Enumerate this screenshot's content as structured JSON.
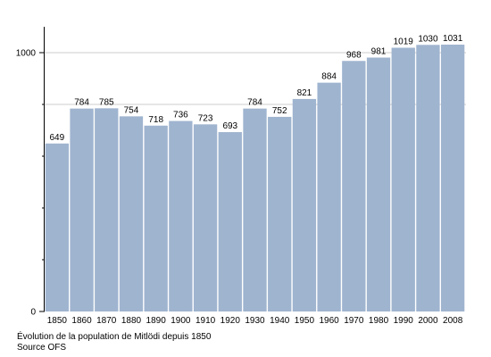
{
  "chart_data": {
    "type": "bar",
    "categories": [
      "1850",
      "1860",
      "1870",
      "1880",
      "1890",
      "1900",
      "1910",
      "1920",
      "1930",
      "1940",
      "1950",
      "1960",
      "1970",
      "1980",
      "1990",
      "2000",
      "2008"
    ],
    "values": [
      649,
      784,
      785,
      754,
      718,
      736,
      723,
      693,
      784,
      752,
      821,
      884,
      968,
      981,
      1019,
      1030,
      1031
    ],
    "data_labels": [
      "649",
      "784",
      "785",
      "754",
      "718",
      "736",
      "723",
      "693",
      "784",
      "752",
      "821",
      "884",
      "968",
      "981",
      "1019",
      "1030",
      "1031"
    ],
    "ylim": [
      0,
      1100
    ],
    "y_ticks": [
      {
        "value": 0,
        "label": "0"
      },
      {
        "value": 1000,
        "label": "1000"
      }
    ],
    "y_minor_ticks": [
      200,
      400,
      600,
      800
    ],
    "gridlines": [
      800,
      1000
    ],
    "bar_color": "#9fb4cf",
    "title": "",
    "xlabel": "",
    "ylabel": ""
  },
  "caption": {
    "title": "Évolution de la population de Mitlödi depuis 1850",
    "source": "Source OFS"
  }
}
